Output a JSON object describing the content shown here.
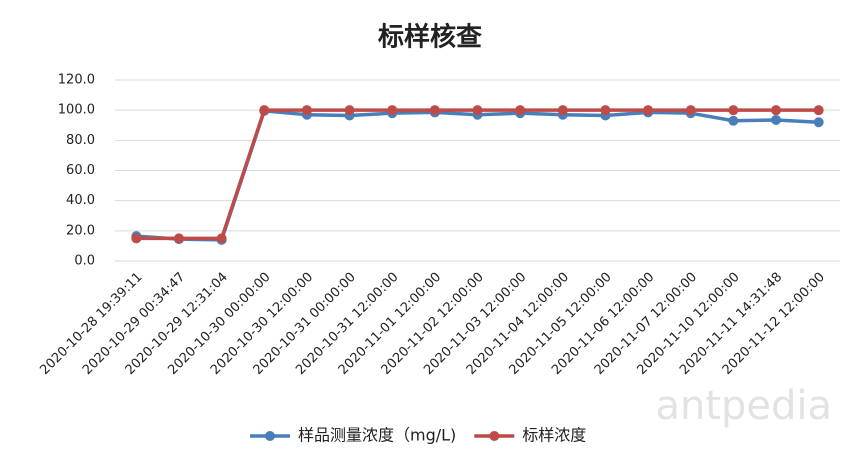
{
  "chart_data": {
    "type": "line",
    "title": "标样核查",
    "categories": [
      "2020-10-28 19:39:11",
      "2020-10-29 00:34:47",
      "2020-10-29 12:31:04",
      "2020-10-30 00:00:00",
      "2020-10-30 12:00:00",
      "2020-10-31 00:00:00",
      "2020-10-31 12:00:00",
      "2020-11-01 12:00:00",
      "2020-11-02 12:00:00",
      "2020-11-03 12:00:00",
      "2020-11-04 12:00:00",
      "2020-11-05 12:00:00",
      "2020-11-06 12:00:00",
      "2020-11-07 12:00:00",
      "2020-11-10 12:00:00",
      "2020-11-11 14:31:48",
      "2020-11-12 12:00:00"
    ],
    "series": [
      {
        "name": "样品测量浓度（mg/L)",
        "color": "#4a7ebb",
        "values": [
          16.5,
          14.5,
          14.0,
          99.5,
          97,
          96.5,
          98,
          98.5,
          97,
          98,
          97,
          96.5,
          98.5,
          98,
          93,
          93.5,
          92
        ]
      },
      {
        "name": "标样浓度",
        "color": "#be4b48",
        "values": [
          15,
          15,
          15,
          100,
          100,
          100,
          100,
          100,
          100,
          100,
          100,
          100,
          100,
          100,
          100,
          100,
          100
        ]
      }
    ],
    "ylim": [
      0,
      120
    ],
    "yticks": [
      {
        "value": 0,
        "label": "0.0"
      },
      {
        "value": 20,
        "label": "20.0"
      },
      {
        "value": 40,
        "label": "40.0"
      },
      {
        "value": 60,
        "label": "60.0"
      },
      {
        "value": 80,
        "label": "80.0"
      },
      {
        "value": 100,
        "label": "100.0"
      },
      {
        "value": 120,
        "label": "120.0"
      }
    ],
    "grid": true,
    "legend": "bottom",
    "watermark": "antpedia"
  }
}
